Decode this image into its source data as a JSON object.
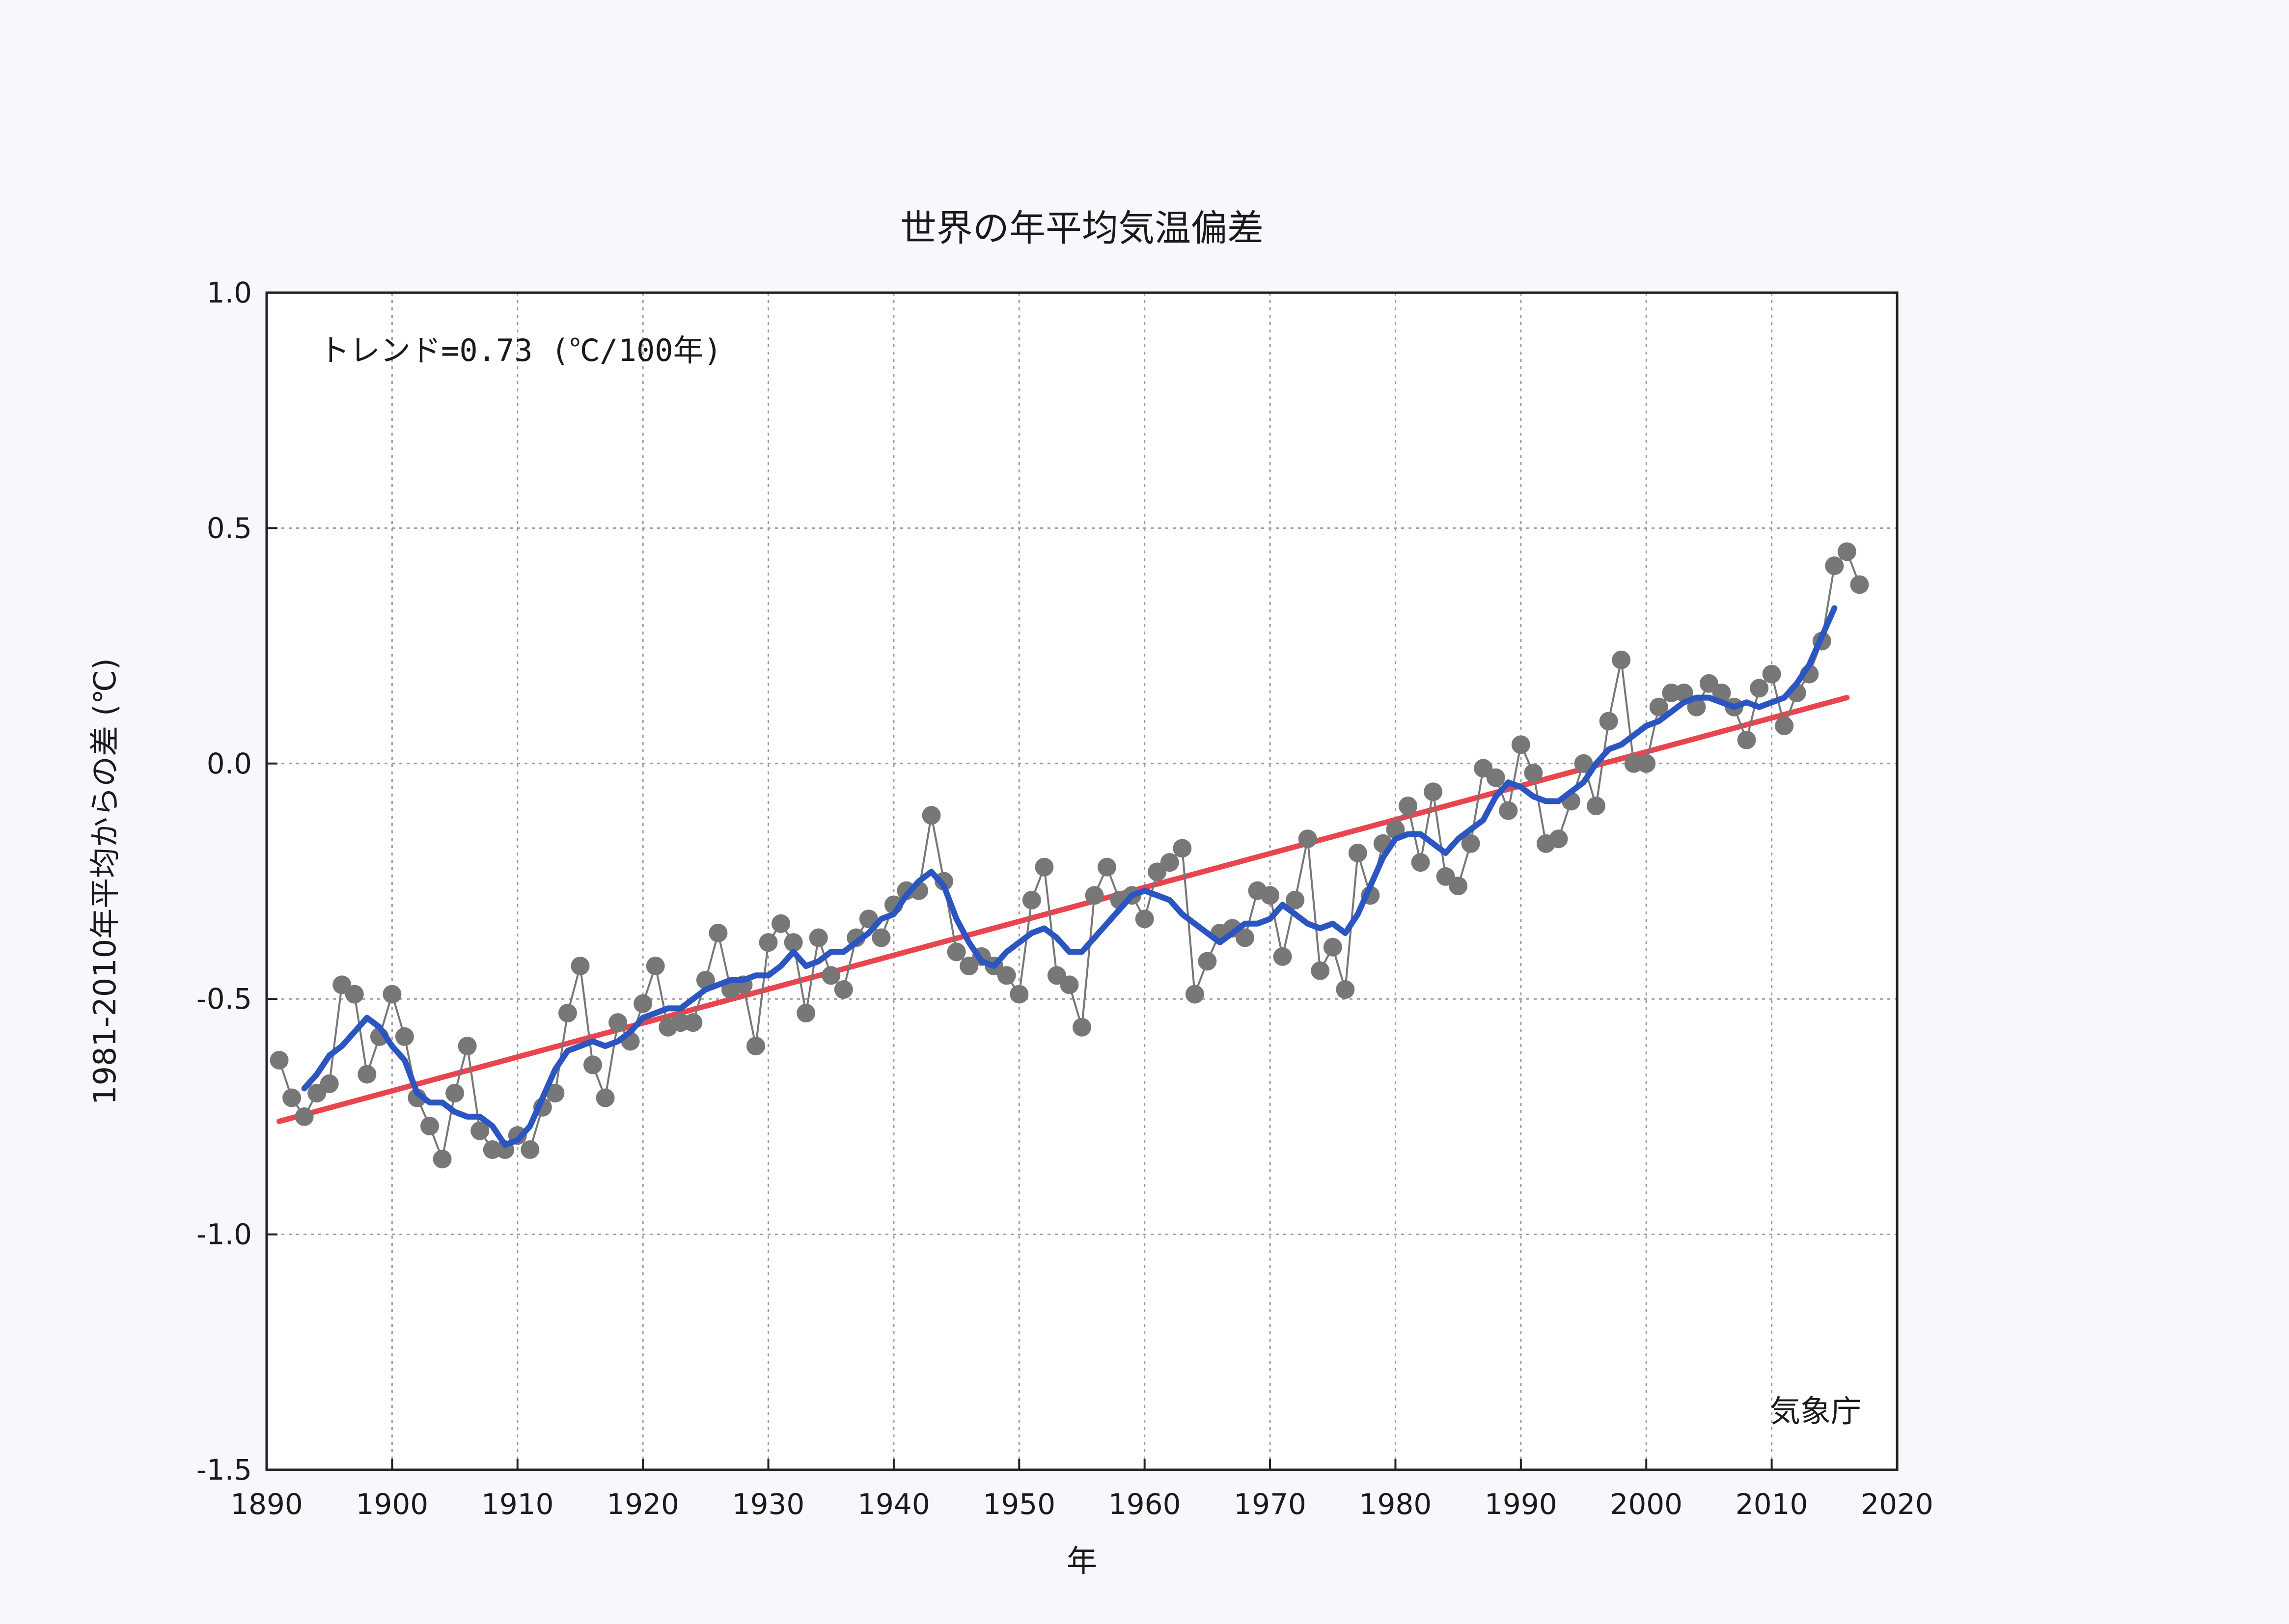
{
  "chart_data": {
    "type": "line",
    "title": "世界の年平均気温偏差",
    "xlabel": "年",
    "ylabel": "1981-2010年平均からの差 (℃)",
    "xlim": [
      1890,
      2020
    ],
    "ylim": [
      -1.5,
      1.0
    ],
    "x_ticks": [
      "1890",
      "1900",
      "1910",
      "1920",
      "1930",
      "1940",
      "1950",
      "1960",
      "1970",
      "1980",
      "1990",
      "2000",
      "2010",
      "2020"
    ],
    "y_ticks": [
      "1.0",
      "0.5",
      "0.0",
      "-0.5",
      "-1.0",
      "-1.5"
    ],
    "grid": true,
    "annotation": "トレンド=0.73 (℃/100年)",
    "credit": "気象庁",
    "colors": {
      "annual": "#777777",
      "moving_average": "#2b55c0",
      "trend": "#e8454f"
    },
    "series": [
      {
        "style": "gray-points",
        "x": [
          1891,
          1892,
          1893,
          1894,
          1895,
          1896,
          1897,
          1898,
          1899,
          1900,
          1901,
          1902,
          1903,
          1904,
          1905,
          1906,
          1907,
          1908,
          1909,
          1910,
          1911,
          1912,
          1913,
          1914,
          1915,
          1916,
          1917,
          1918,
          1919,
          1920,
          1921,
          1922,
          1923,
          1924,
          1925,
          1926,
          1927,
          1928,
          1929,
          1930,
          1931,
          1932,
          1933,
          1934,
          1935,
          1936,
          1937,
          1938,
          1939,
          1940,
          1941,
          1942,
          1943,
          1944,
          1945,
          1946,
          1947,
          1948,
          1949,
          1950,
          1951,
          1952,
          1953,
          1954,
          1955,
          1956,
          1957,
          1958,
          1959,
          1960,
          1961,
          1962,
          1963,
          1964,
          1965,
          1966,
          1967,
          1968,
          1969,
          1970,
          1971,
          1972,
          1973,
          1974,
          1975,
          1976,
          1977,
          1978,
          1979,
          1980,
          1981,
          1982,
          1983,
          1984,
          1985,
          1986,
          1987,
          1988,
          1989,
          1990,
          1991,
          1992,
          1993,
          1994,
          1995,
          1996,
          1997,
          1998,
          1999,
          2000,
          2001,
          2002,
          2003,
          2004,
          2005,
          2006,
          2007,
          2008,
          2009,
          2010,
          2011,
          2012,
          2013,
          2014,
          2015,
          2016,
          2017
        ],
        "y": [
          -0.63,
          -0.71,
          -0.75,
          -0.7,
          -0.68,
          -0.47,
          -0.49,
          -0.66,
          -0.58,
          -0.49,
          -0.58,
          -0.71,
          -0.77,
          -0.84,
          -0.7,
          -0.6,
          -0.78,
          -0.82,
          -0.82,
          -0.79,
          -0.82,
          -0.73,
          -0.7,
          -0.53,
          -0.43,
          -0.64,
          -0.71,
          -0.55,
          -0.59,
          -0.51,
          -0.43,
          -0.56,
          -0.55,
          -0.55,
          -0.46,
          -0.36,
          -0.48,
          -0.47,
          -0.6,
          -0.38,
          -0.34,
          -0.38,
          -0.53,
          -0.37,
          -0.45,
          -0.48,
          -0.37,
          -0.33,
          -0.37,
          -0.3,
          -0.27,
          -0.27,
          -0.11,
          -0.25,
          -0.4,
          -0.43,
          -0.41,
          -0.43,
          -0.45,
          -0.49,
          -0.29,
          -0.22,
          -0.45,
          -0.47,
          -0.56,
          -0.28,
          -0.22,
          -0.29,
          -0.28,
          -0.33,
          -0.23,
          -0.21,
          -0.18,
          -0.49,
          -0.42,
          -0.36,
          -0.35,
          -0.37,
          -0.27,
          -0.28,
          -0.41,
          -0.29,
          -0.16,
          -0.44,
          -0.39,
          -0.48,
          -0.19,
          -0.28,
          -0.17,
          -0.14,
          -0.09,
          -0.21,
          -0.06,
          -0.24,
          -0.26,
          -0.17,
          -0.01,
          -0.03,
          -0.1,
          0.04,
          -0.02,
          -0.17,
          -0.16,
          -0.08,
          0.0,
          -0.09,
          0.09,
          0.22,
          0.0,
          0.0,
          0.12,
          0.15,
          0.15,
          0.12,
          0.17,
          0.15,
          0.12,
          0.05,
          0.16,
          0.19,
          0.08,
          0.15,
          0.19,
          0.26,
          0.42,
          0.45,
          0.38
        ]
      },
      {
        "style": "blue-line",
        "x": [
          1893,
          1894,
          1895,
          1896,
          1897,
          1898,
          1899,
          1900,
          1901,
          1902,
          1903,
          1904,
          1905,
          1906,
          1907,
          1908,
          1909,
          1910,
          1911,
          1912,
          1913,
          1914,
          1915,
          1916,
          1917,
          1918,
          1919,
          1920,
          1921,
          1922,
          1923,
          1924,
          1925,
          1926,
          1927,
          1928,
          1929,
          1930,
          1931,
          1932,
          1933,
          1934,
          1935,
          1936,
          1937,
          1938,
          1939,
          1940,
          1941,
          1942,
          1943,
          1944,
          1945,
          1946,
          1947,
          1948,
          1949,
          1950,
          1951,
          1952,
          1953,
          1954,
          1955,
          1956,
          1957,
          1958,
          1959,
          1960,
          1961,
          1962,
          1963,
          1964,
          1965,
          1966,
          1967,
          1968,
          1969,
          1970,
          1971,
          1972,
          1973,
          1974,
          1975,
          1976,
          1977,
          1978,
          1979,
          1980,
          1981,
          1982,
          1983,
          1984,
          1985,
          1986,
          1987,
          1988,
          1989,
          1990,
          1991,
          1992,
          1993,
          1994,
          1995,
          1996,
          1997,
          1998,
          1999,
          2000,
          2001,
          2002,
          2003,
          2004,
          2005,
          2006,
          2007,
          2008,
          2009,
          2010,
          2011,
          2012,
          2013,
          2014,
          2015
        ],
        "y": [
          -0.69,
          -0.66,
          -0.62,
          -0.6,
          -0.57,
          -0.54,
          -0.56,
          -0.6,
          -0.63,
          -0.7,
          -0.72,
          -0.72,
          -0.74,
          -0.75,
          -0.75,
          -0.77,
          -0.81,
          -0.8,
          -0.77,
          -0.71,
          -0.65,
          -0.61,
          -0.6,
          -0.59,
          -0.6,
          -0.59,
          -0.57,
          -0.54,
          -0.53,
          -0.52,
          -0.52,
          -0.5,
          -0.48,
          -0.47,
          -0.46,
          -0.46,
          -0.45,
          -0.45,
          -0.43,
          -0.4,
          -0.43,
          -0.42,
          -0.4,
          -0.4,
          -0.38,
          -0.36,
          -0.33,
          -0.32,
          -0.28,
          -0.25,
          -0.23,
          -0.26,
          -0.33,
          -0.38,
          -0.42,
          -0.43,
          -0.4,
          -0.38,
          -0.36,
          -0.35,
          -0.37,
          -0.4,
          -0.4,
          -0.37,
          -0.34,
          -0.31,
          -0.28,
          -0.27,
          -0.28,
          -0.29,
          -0.32,
          -0.34,
          -0.36,
          -0.38,
          -0.36,
          -0.34,
          -0.34,
          -0.33,
          -0.3,
          -0.32,
          -0.34,
          -0.35,
          -0.34,
          -0.36,
          -0.32,
          -0.26,
          -0.2,
          -0.16,
          -0.15,
          -0.15,
          -0.17,
          -0.19,
          -0.16,
          -0.14,
          -0.12,
          -0.07,
          -0.04,
          -0.05,
          -0.07,
          -0.08,
          -0.08,
          -0.06,
          -0.04,
          0.0,
          0.03,
          0.04,
          0.06,
          0.08,
          0.09,
          0.11,
          0.13,
          0.14,
          0.14,
          0.13,
          0.12,
          0.13,
          0.12,
          0.13,
          0.14,
          0.17,
          0.21,
          0.27,
          0.33
        ]
      },
      {
        "style": "red-line",
        "x": [
          1891,
          2016
        ],
        "y": [
          -0.76,
          0.14
        ]
      }
    ]
  }
}
